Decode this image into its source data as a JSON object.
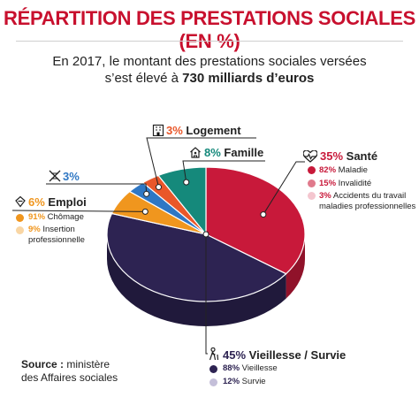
{
  "header": {
    "title": "RÉPARTITION DES PRESTATIONS SOCIALES (EN %)",
    "subtitle_line1": "En 2017, le montant des prestations sociales versées",
    "subtitle_line2_a": "s’est élevé à ",
    "subtitle_line2_b": "730 milliards d’euros"
  },
  "source": {
    "label": "Source :",
    "text_a": " ministère",
    "text_b": "des Affaires sociales"
  },
  "colors": {
    "title": "#c8102e",
    "sante": "#c8193a",
    "vieillesse": "#2d2352",
    "emploi": "#f0961e",
    "unnamed": "#2f77c4",
    "logement": "#e9572a",
    "famille": "#15897b"
  },
  "chart_data": {
    "type": "pie",
    "title": "RÉPARTITION DES PRESTATIONS SOCIALES (EN %)",
    "unit": "%",
    "slices": [
      {
        "key": "sante",
        "name": "Santé",
        "value": 35,
        "pct_label": "35%",
        "icon": "heart-pulse-icon",
        "breakdown": [
          {
            "value": 82,
            "pct_label": "82%",
            "text": "Maladie"
          },
          {
            "value": 15,
            "pct_label": "15%",
            "text": "Invalidité"
          },
          {
            "value": 3,
            "pct_label": "3%",
            "text": "Accidents du travail",
            "text2": "maladies professionnelles"
          }
        ]
      },
      {
        "key": "vieillesse",
        "name": "Vieillesse / Survie",
        "value": 45,
        "pct_label": "45%",
        "icon": "elderly-person-icon",
        "breakdown": [
          {
            "value": 88,
            "pct_label": "88%",
            "text": "Vieillesse"
          },
          {
            "value": 12,
            "pct_label": "12%",
            "text": "Survie"
          }
        ]
      },
      {
        "key": "emploi",
        "name": "Emploi",
        "value": 6,
        "pct_label": "6%",
        "icon": "briefcase-icon",
        "breakdown": [
          {
            "value": 91,
            "pct_label": "91%",
            "text": "Chômage"
          },
          {
            "value": 9,
            "pct_label": "9%",
            "text": "Insertion",
            "text2": "professionnelle"
          }
        ]
      },
      {
        "key": "unnamed",
        "name": "",
        "value": 3,
        "pct_label": "3%",
        "icon": "crossed-out-icon",
        "breakdown": []
      },
      {
        "key": "logement",
        "name": "Logement",
        "value": 3,
        "pct_label": "3%",
        "icon": "building-icon",
        "breakdown": []
      },
      {
        "key": "famille",
        "name": "Famille",
        "value": 8,
        "pct_label": "8%",
        "icon": "house-family-icon",
        "breakdown": []
      }
    ]
  }
}
